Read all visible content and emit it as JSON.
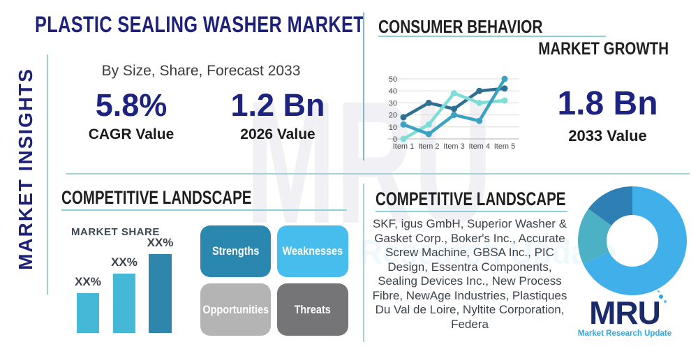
{
  "colors": {
    "navy": "#1e2178",
    "stat_navy": "#1c2380",
    "heading_dark": "#1f1f1f",
    "teal_underline": "#8ed0d8",
    "divider": "#a6cfda",
    "rail_line": "#9ccede",
    "body_text": "#3b424a",
    "logo_navy": "#1b2a6b",
    "logo_blue": "#2aa7e0"
  },
  "rail": {
    "label": "MARKET INSIGHTS"
  },
  "header": {
    "title": "PLASTIC SEALING WASHER MARKET"
  },
  "overview": {
    "subtitle": "By Size, Share, Forecast 2033",
    "stats": [
      {
        "value": "5.8%",
        "label": "CAGR Value"
      },
      {
        "value": "1.2 Bn",
        "label": "2026 Value"
      }
    ]
  },
  "consumer_behavior": {
    "heading": "CONSUMER BEHAVIOR",
    "subheading": "MARKET GROWTH",
    "stat": {
      "value": "1.8 Bn",
      "label": "2033 Value"
    }
  },
  "competitive_left": {
    "heading": "COMPETITIVE LANDSCAPE",
    "market_share_label": "MARKET SHARE",
    "swot": [
      {
        "label": "Strengths",
        "color": "#2a87b0"
      },
      {
        "label": "Weaknesses",
        "color": "#47bdee"
      },
      {
        "label": "Opportunities",
        "color": "#b4b4b4"
      },
      {
        "label": "Threats",
        "color": "#757577"
      }
    ]
  },
  "competitive_right": {
    "heading": "COMPETITIVE LANDSCAPE",
    "companies": "SKF, igus GmbH, Superior Washer & Gasket Corp., Boker's Inc., Accurate Screw Machine, GBSA Inc., PIC Design, Essentra Components, Sealing Devices Inc., New Process Fibre, NewAge Industries, Plastiques Du Val de Loire, Nyltite Corporation, Federa"
  },
  "logo": {
    "name": "MRU",
    "tagline": "Market Research Update"
  },
  "watermark": {
    "text": "MRU",
    "tagline": "Market Research Update"
  },
  "chart_data": [
    {
      "type": "line",
      "title": "CONSUMER BEHAVIOR",
      "x": [
        "Item 1",
        "Item 2",
        "Item 3",
        "Item 4",
        "Item 5"
      ],
      "series": [
        {
          "name": "series-dark-blue",
          "color": "#2e6f92",
          "values": [
            18,
            30,
            25,
            40,
            42
          ]
        },
        {
          "name": "series-light-teal",
          "color": "#7eddd6",
          "values": [
            0,
            12,
            38,
            30,
            32
          ]
        },
        {
          "name": "series-medium-teal",
          "color": "#3ba3c1",
          "values": [
            12,
            4,
            20,
            15,
            50
          ]
        }
      ],
      "ylim": [
        0,
        50
      ],
      "yticks": [
        0,
        10,
        20,
        30,
        40,
        50
      ],
      "grid": true,
      "legend": "none"
    },
    {
      "type": "bar",
      "title": "MARKET SHARE",
      "categories": [
        "company-1",
        "company-2",
        "company-3"
      ],
      "values": [
        20,
        30,
        40
      ],
      "value_labels": [
        "XX%",
        "XX%",
        "XX%"
      ],
      "colors": [
        "#45b7d7",
        "#45b7d7",
        "#2e86ad"
      ],
      "ylim": [
        0,
        50
      ],
      "note": "actual values masked as XX% in source; bar heights estimated"
    },
    {
      "type": "pie",
      "donut": true,
      "slices": [
        {
          "name": "slice-light-blue",
          "value": 68,
          "color": "#41afe9"
        },
        {
          "name": "slice-teal",
          "value": 17,
          "color": "#4db1c6"
        },
        {
          "name": "slice-dark-blue",
          "value": 15,
          "color": "#2e7fb3"
        }
      ],
      "labels_shown": false
    }
  ]
}
